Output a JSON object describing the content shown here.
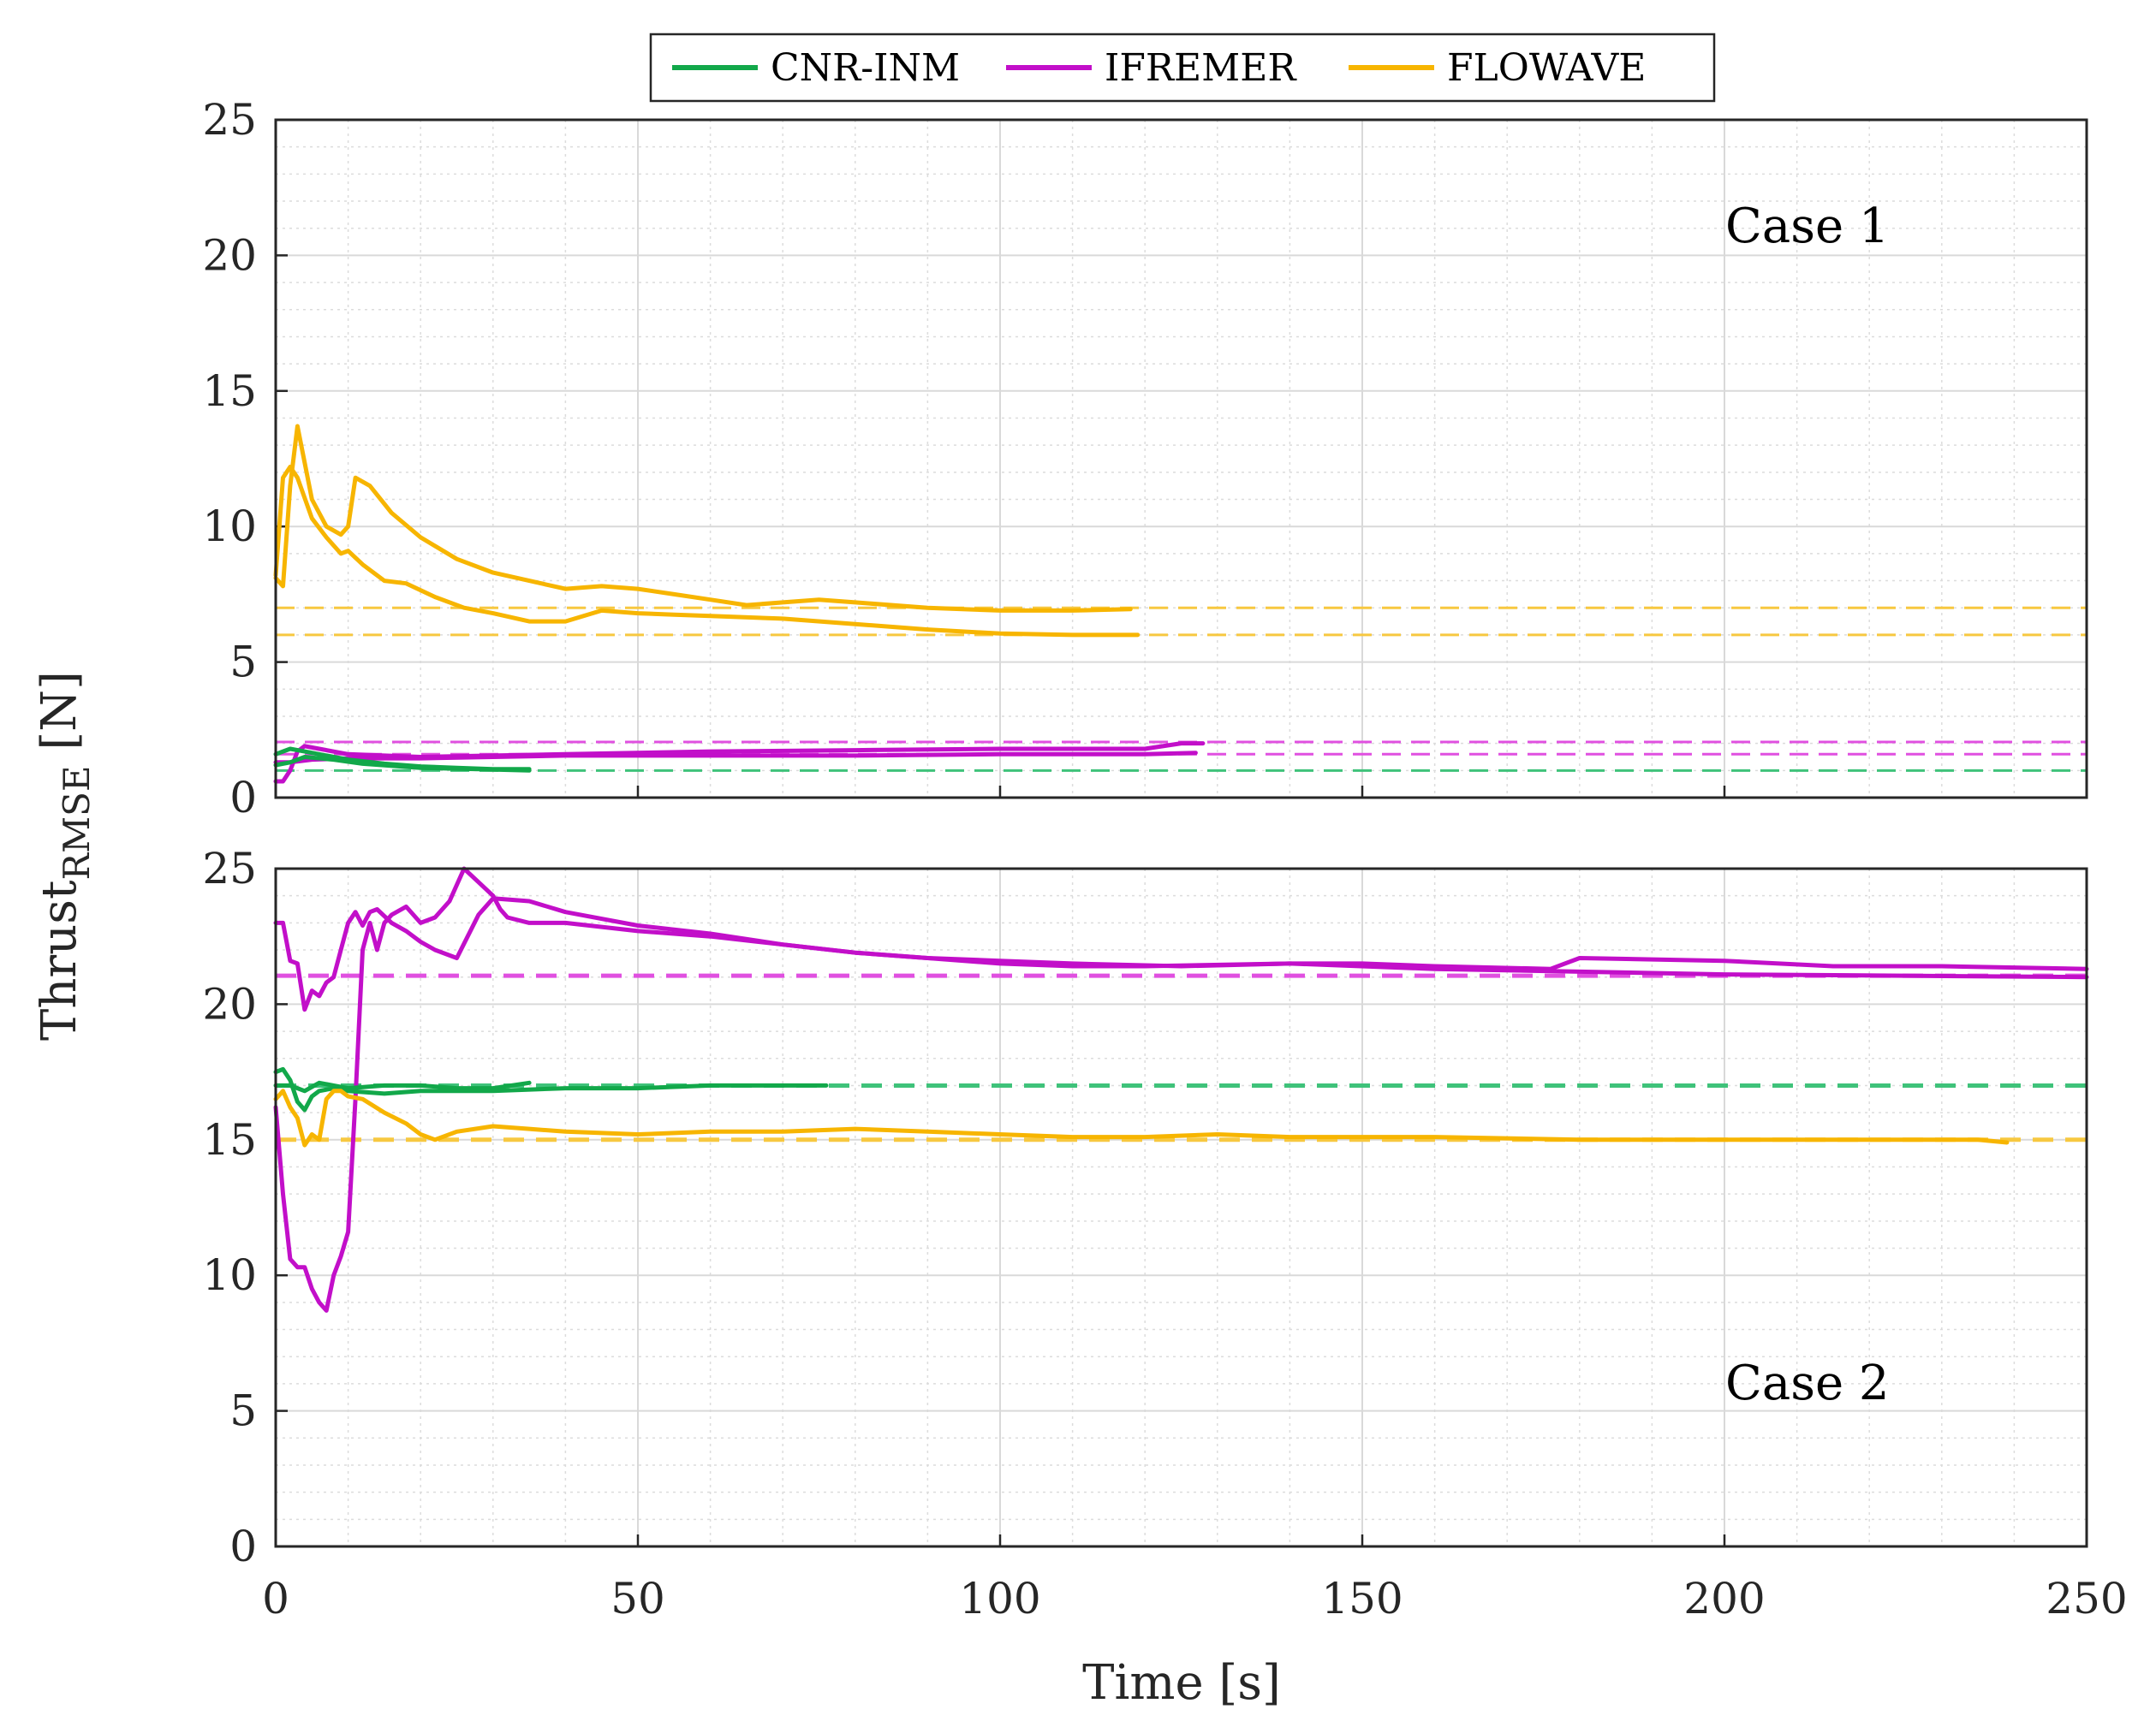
{
  "chart_data": {
    "type": "line",
    "xlabel": "Time [s]",
    "ylabel": "Thrust",
    "ylabel_subscript": "RMSE",
    "ylabel_unit": " [N]",
    "xlim": [
      0,
      250
    ],
    "ylim": [
      0,
      25
    ],
    "xticks": [
      "0",
      "50",
      "100",
      "150",
      "200",
      "250"
    ],
    "yticks": [
      "0",
      "5",
      "10",
      "15",
      "20",
      "25"
    ],
    "grid": true,
    "minor_grid": true,
    "legend": {
      "position": "top-center",
      "entries": [
        {
          "name": "CNR-INM",
          "color": "#12a84a"
        },
        {
          "name": "IFREMER",
          "color": "#c20fc9"
        },
        {
          "name": "FLOWAVE",
          "color": "#f7b500"
        }
      ]
    },
    "panels": [
      {
        "annotation": "Case 1",
        "series": [
          {
            "group": "FLOWAVE",
            "color": "#f7b500",
            "x": [
              0,
              1,
              2,
              3,
              5,
              7,
              9,
              10,
              12,
              15,
              18,
              22,
              26,
              30,
              35,
              40,
              45,
              50,
              55,
              60,
              70,
              80,
              90,
              100,
              110,
              119
            ],
            "y": [
              8.2,
              11.8,
              12.2,
              11.8,
              10.3,
              9.6,
              9.0,
              9.1,
              8.6,
              8.0,
              7.9,
              7.4,
              7.0,
              6.8,
              6.5,
              6.5,
              6.9,
              6.8,
              6.75,
              6.7,
              6.6,
              6.4,
              6.2,
              6.05,
              6.0,
              6.0
            ]
          },
          {
            "group": "FLOWAVE",
            "color": "#f7b500",
            "x": [
              0,
              1,
              2,
              3,
              5,
              7,
              9,
              10,
              11,
              13,
              16,
              20,
              25,
              30,
              35,
              40,
              45,
              50,
              55,
              60,
              65,
              70,
              75,
              80,
              90,
              100,
              110,
              118
            ],
            "y": [
              8.1,
              7.8,
              11.5,
              13.7,
              11.0,
              10.0,
              9.7,
              10.0,
              11.8,
              11.5,
              10.5,
              9.6,
              8.8,
              8.3,
              8.0,
              7.7,
              7.8,
              7.7,
              7.5,
              7.3,
              7.1,
              7.2,
              7.3,
              7.2,
              7.0,
              6.9,
              6.9,
              6.95
            ]
          },
          {
            "group": "IFREMER",
            "color": "#c20fc9",
            "x": [
              0,
              1,
              2,
              3,
              4,
              6,
              10,
              15,
              20,
              30,
              40,
              60,
              80,
              100,
              110,
              120,
              125,
              128
            ],
            "y": [
              0.6,
              0.6,
              1.0,
              1.7,
              1.9,
              1.8,
              1.6,
              1.55,
              1.5,
              1.55,
              1.6,
              1.7,
              1.75,
              1.8,
              1.8,
              1.8,
              2.0,
              2.0
            ]
          },
          {
            "group": "IFREMER",
            "color": "#c20fc9",
            "x": [
              0,
              2,
              5,
              10,
              20,
              30,
              40,
              60,
              80,
              100,
              120,
              127
            ],
            "y": [
              1.3,
              1.3,
              1.4,
              1.45,
              1.45,
              1.5,
              1.55,
              1.55,
              1.55,
              1.6,
              1.6,
              1.65
            ]
          },
          {
            "group": "CNR-INM",
            "color": "#12a84a",
            "x": [
              0,
              1,
              2,
              4,
              6,
              10,
              15,
              20,
              25,
              30,
              35
            ],
            "y": [
              1.6,
              1.7,
              1.8,
              1.7,
              1.6,
              1.4,
              1.25,
              1.15,
              1.1,
              1.05,
              1.05
            ]
          },
          {
            "group": "CNR-INM",
            "color": "#12a84a",
            "x": [
              0,
              2,
              4,
              8,
              12,
              20,
              28,
              35
            ],
            "y": [
              1.2,
              1.3,
              1.5,
              1.4,
              1.25,
              1.1,
              1.05,
              1.0
            ]
          }
        ],
        "reference_lines": [
          {
            "group": "FLOWAVE",
            "y": 7.0,
            "color": "#f7c840"
          },
          {
            "group": "FLOWAVE",
            "y": 6.0,
            "color": "#f7c840"
          },
          {
            "group": "IFREMER",
            "y": 2.05,
            "color": "#e050e0"
          },
          {
            "group": "IFREMER",
            "y": 1.6,
            "color": "#e050e0"
          },
          {
            "group": "CNR-INM",
            "y": 1.0,
            "color": "#3fc27a"
          }
        ]
      },
      {
        "annotation": "Case 2",
        "series": [
          {
            "group": "IFREMER",
            "color": "#c20fc9",
            "x": [
              0,
              1,
              2,
              3,
              4,
              5,
              6,
              7,
              8,
              9,
              10,
              11,
              12,
              13,
              14,
              16,
              18,
              20,
              22,
              25,
              28,
              30,
              35,
              40,
              50,
              60,
              70,
              80,
              90,
              100,
              110,
              125,
              140,
              150,
              160,
              176,
              180,
              200,
              215,
              230,
              250
            ],
            "y": [
              23.0,
              23.0,
              21.6,
              21.5,
              19.8,
              20.5,
              20.3,
              20.8,
              21.0,
              22.0,
              23.0,
              23.4,
              22.9,
              23.4,
              23.5,
              23.0,
              22.7,
              22.3,
              22.0,
              21.7,
              23.3,
              23.9,
              23.8,
              23.4,
              22.9,
              22.6,
              22.2,
              21.9,
              21.7,
              21.6,
              21.5,
              21.4,
              21.5,
              21.5,
              21.4,
              21.3,
              21.7,
              21.6,
              21.4,
              21.4,
              21.3
            ]
          },
          {
            "group": "IFREMER",
            "color": "#c20fc9",
            "x": [
              0,
              1,
              2,
              3,
              4,
              5,
              6,
              7,
              8,
              9,
              10,
              11,
              12,
              13,
              14,
              15,
              16,
              18,
              20,
              22,
              24,
              26,
              28,
              30,
              31,
              32,
              35,
              40,
              50,
              60,
              70,
              80,
              90,
              100,
              110,
              120,
              140,
              160,
              200,
              250
            ],
            "y": [
              16.2,
              13.0,
              10.6,
              10.3,
              10.3,
              9.5,
              9.0,
              8.7,
              10.0,
              10.7,
              11.6,
              16.5,
              22.0,
              23.0,
              22.0,
              23.0,
              23.3,
              23.6,
              23.0,
              23.2,
              23.8,
              25.0,
              24.5,
              24.0,
              23.5,
              23.2,
              23.0,
              23.0,
              22.7,
              22.5,
              22.2,
              21.9,
              21.7,
              21.5,
              21.4,
              21.4,
              21.5,
              21.3,
              21.1,
              21.0
            ]
          },
          {
            "group": "CNR-INM",
            "color": "#12a84a",
            "x": [
              0,
              1,
              2,
              3,
              4,
              5,
              6,
              8,
              10,
              15,
              20,
              30,
              40,
              50,
              60,
              70,
              76
            ],
            "y": [
              17.5,
              17.6,
              17.2,
              16.4,
              16.1,
              16.6,
              16.8,
              16.9,
              16.8,
              16.7,
              16.8,
              16.8,
              16.9,
              16.9,
              17.0,
              17.0,
              17.0
            ]
          },
          {
            "group": "CNR-INM",
            "color": "#12a84a",
            "x": [
              0,
              2,
              4,
              6,
              8,
              10,
              15,
              20,
              25,
              30,
              35
            ],
            "y": [
              17.0,
              17.0,
              16.8,
              17.1,
              17.0,
              16.9,
              17.0,
              17.0,
              16.9,
              16.9,
              17.1
            ]
          },
          {
            "group": "FLOWAVE",
            "color": "#f7b500",
            "x": [
              0,
              1,
              2,
              3,
              4,
              5,
              6,
              7,
              8,
              9,
              10,
              12,
              15,
              18,
              20,
              22,
              25,
              30,
              35,
              40,
              50,
              60,
              70,
              80,
              90,
              100,
              110,
              120,
              130,
              140,
              160,
              180,
              200,
              220,
              235,
              239
            ],
            "y": [
              16.5,
              16.8,
              16.2,
              15.8,
              14.8,
              15.2,
              15.0,
              16.5,
              16.8,
              16.8,
              16.6,
              16.5,
              16.0,
              15.6,
              15.2,
              15.0,
              15.3,
              15.5,
              15.4,
              15.3,
              15.2,
              15.3,
              15.3,
              15.4,
              15.3,
              15.2,
              15.1,
              15.1,
              15.2,
              15.1,
              15.1,
              15.0,
              15.0,
              15.0,
              15.0,
              14.9
            ]
          }
        ],
        "reference_lines": [
          {
            "group": "IFREMER",
            "y": 21.05,
            "color": "#e050e0"
          },
          {
            "group": "CNR-INM",
            "y": 17.0,
            "color": "#3fc27a"
          },
          {
            "group": "FLOWAVE",
            "y": 15.0,
            "color": "#f7c840"
          }
        ]
      }
    ]
  }
}
